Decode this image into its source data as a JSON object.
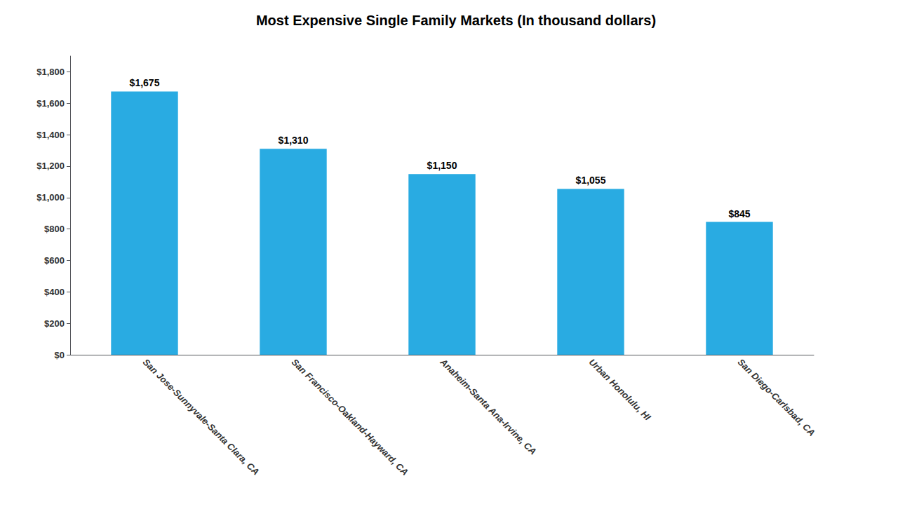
{
  "chart_data": {
    "type": "bar",
    "title": "Most Expensive Single Family Markets (In thousand dollars)",
    "categories": [
      "San Jose-Sunnyvale-Santa Clara, CA",
      "San Francisco-Oakland-Hayward, CA",
      "Anaheim-Santa Ana-Irvine, CA",
      "Urban Honolulu, HI",
      "San Diego-Carlsbad, CA"
    ],
    "values": [
      1675,
      1310,
      1150,
      1055,
      845
    ],
    "value_labels": [
      "$1,675",
      "$1,310",
      "$1,150",
      "$1,055",
      "$845"
    ],
    "data_labels": true,
    "color": "#29ABE2",
    "ylim": [
      0,
      1900
    ],
    "yticks": [
      {
        "value": 0,
        "label": "$0"
      },
      {
        "value": 200,
        "label": "$200"
      },
      {
        "value": 400,
        "label": "$400"
      },
      {
        "value": 600,
        "label": "$600"
      },
      {
        "value": 800,
        "label": "$800"
      },
      {
        "value": 1000,
        "label": "$1,000"
      },
      {
        "value": 1200,
        "label": "$1,200"
      },
      {
        "value": 1400,
        "label": "$1,400"
      },
      {
        "value": 1600,
        "label": "$1,600"
      },
      {
        "value": 1800,
        "label": "$1,800"
      }
    ],
    "grid": false
  }
}
